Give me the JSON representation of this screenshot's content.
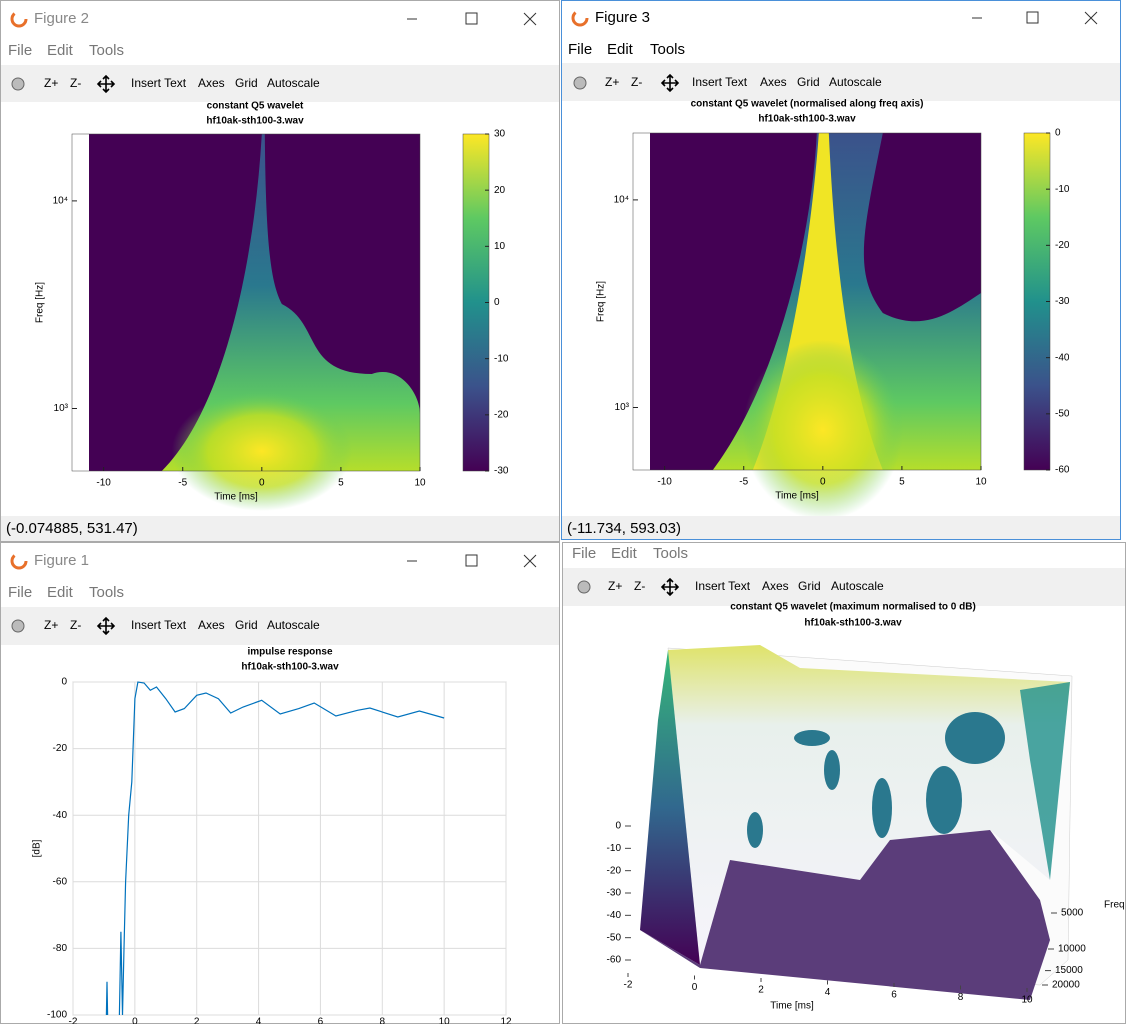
{
  "windows": [
    {
      "title": "Figure 2",
      "menu": [
        "File",
        "Edit",
        "Tools"
      ],
      "toolbar": [
        "Z+",
        "Z-",
        "Insert Text",
        "Axes",
        "Grid",
        "Autoscale"
      ],
      "status": "(-0.074885, 531.47)",
      "chart": {
        "type": "spectrogram",
        "title": "constant Q5 wavelet",
        "subtitle": "hf10ak-sth100-3.wav",
        "xlabel": "Time [ms]",
        "ylabel": "Freq [Hz]",
        "xlim": [
          -12,
          10
        ],
        "xticks": [
          -10,
          -5,
          0,
          5,
          10
        ],
        "ylim": [
          500,
          21000
        ],
        "ylog": true,
        "yticks": [
          {
            "value": 1000,
            "label": "10³"
          },
          {
            "value": 10000,
            "label": "10⁴"
          }
        ],
        "clim": [
          -30,
          30
        ],
        "cticks": [
          -30,
          -20,
          -10,
          0,
          10,
          20,
          30
        ]
      }
    },
    {
      "title": "Figure 3",
      "menu": [
        "File",
        "Edit",
        "Tools"
      ],
      "toolbar": [
        "Z+",
        "Z-",
        "Insert Text",
        "Axes",
        "Grid",
        "Autoscale"
      ],
      "status": "(-11.734, 593.03)",
      "chart": {
        "type": "spectrogram",
        "title": "constant Q5 wavelet (normalised along freq axis)",
        "subtitle": "hf10ak-sth100-3.wav",
        "xlabel": "Time [ms]",
        "ylabel": "Freq [Hz]",
        "xlim": [
          -12,
          10
        ],
        "xticks": [
          -10,
          -5,
          0,
          5,
          10
        ],
        "ylim": [
          500,
          21000
        ],
        "ylog": true,
        "yticks": [
          {
            "value": 1000,
            "label": "10³"
          },
          {
            "value": 10000,
            "label": "10⁴"
          }
        ],
        "clim": [
          -60,
          0
        ],
        "cticks": [
          -60,
          -50,
          -40,
          -30,
          -20,
          -10,
          0
        ]
      }
    },
    {
      "title": "Figure 1",
      "menu": [
        "File",
        "Edit",
        "Tools"
      ],
      "toolbar": [
        "Z+",
        "Z-",
        "Insert Text",
        "Axes",
        "Grid",
        "Autoscale"
      ],
      "chart": {
        "type": "line",
        "title": "impulse response",
        "subtitle": "hf10ak-sth100-3.wav",
        "ylabel": "[dB]",
        "grid": true,
        "color": "#0072bd",
        "xlim": [
          -2,
          12
        ],
        "xticks": [
          -2,
          0,
          2,
          4,
          6,
          8,
          10,
          12
        ],
        "ylim": [
          -100,
          0
        ],
        "yticks": [
          -100,
          -80,
          -60,
          -40,
          -20,
          0
        ],
        "x": [
          -0.92,
          -0.9,
          -0.88,
          null,
          -0.5,
          -0.45,
          -0.4,
          -0.35,
          -0.3,
          -0.2,
          -0.1,
          0,
          0.1,
          0.3,
          0.5,
          0.7,
          1.0,
          1.3,
          1.6,
          2.0,
          2.3,
          2.7,
          3.1,
          3.5,
          4.1,
          4.7,
          5.3,
          5.8,
          6.5,
          7.2,
          7.6,
          8.5,
          9.2,
          10
        ],
        "values": [
          -100,
          -90,
          -100,
          null,
          -100,
          -75,
          -100,
          -80,
          -60,
          -40,
          -30,
          -5,
          0,
          -0.3,
          -2.5,
          -1.5,
          -5,
          -9,
          -8,
          -4,
          -3.3,
          -5,
          -9.3,
          -7.5,
          -5.5,
          -9.6,
          -8,
          -6.3,
          -10.2,
          -8.5,
          -7.8,
          -10.5,
          -8.7,
          -10.8
        ]
      }
    },
    {
      "menu": [
        "File",
        "Edit",
        "Tools"
      ],
      "toolbar": [
        "Z+",
        "Z-",
        "Insert Text",
        "Axes",
        "Grid",
        "Autoscale"
      ],
      "chart": {
        "type": "surface",
        "title": "constant Q5 wavelet (maximum normalised to 0 dB)",
        "subtitle": "hf10ak-sth100-3.wav",
        "xlabel": "Time [ms]",
        "ylabel": "Freq",
        "xlim": [
          -2,
          10
        ],
        "xticks": [
          -2,
          0,
          2,
          4,
          6,
          8,
          10
        ],
        "ylim": [
          0,
          20000
        ],
        "yticks": [
          5000,
          10000,
          15000,
          20000
        ],
        "zlim": [
          -60,
          0
        ],
        "zticks": [
          -60,
          -50,
          -40,
          -30,
          -20,
          -10,
          0
        ]
      }
    }
  ]
}
